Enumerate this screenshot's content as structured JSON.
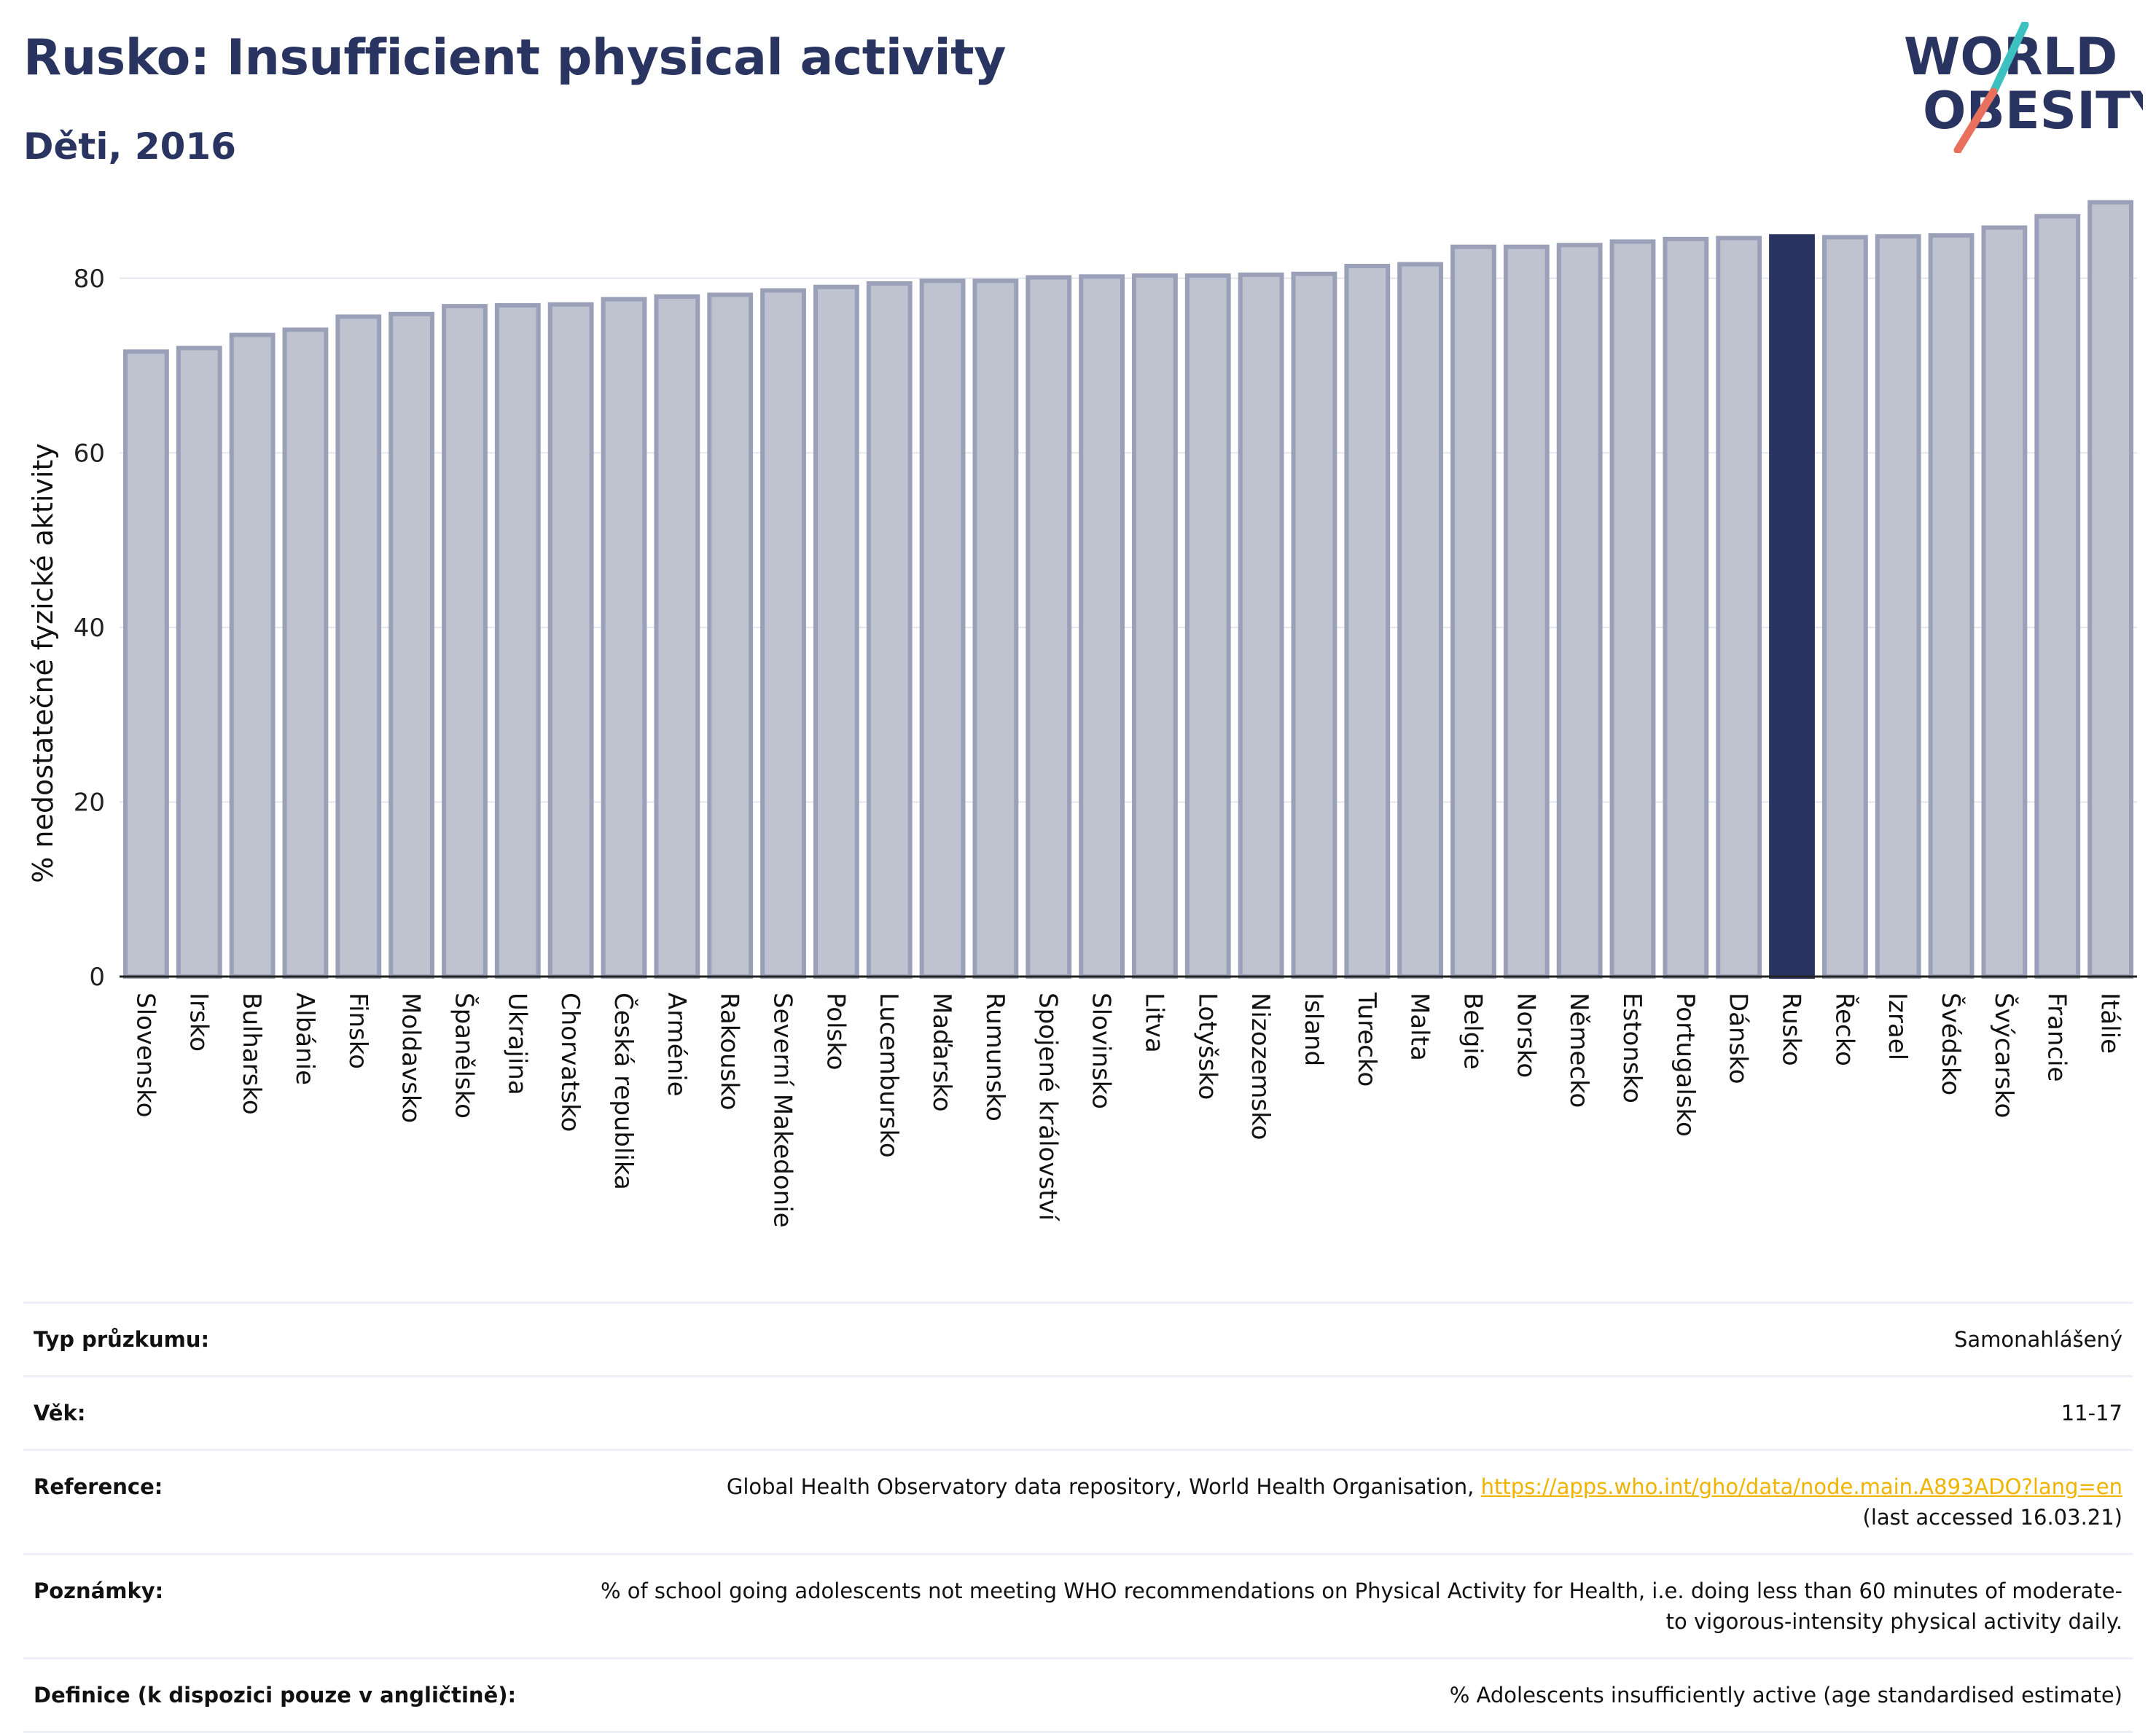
{
  "header": {
    "title": "Rusko: Insufficient physical activity",
    "subtitle": "Děti, 2016"
  },
  "logo": {
    "line1": "WORLD",
    "line2": "OBESITY",
    "text_color": "#2a3460",
    "accent_teal": "#3cc0c0",
    "accent_red": "#e8705c"
  },
  "colors": {
    "bar_fill": "#bfc3d0",
    "bar_stroke": "#9aa0b8",
    "highlight": "#2a3460",
    "title": "#2a3460",
    "grid": "#e4e6ee",
    "link": "#f0b400"
  },
  "chart_data": {
    "type": "bar",
    "ylabel": "% nedostatečné fyzické aktivity",
    "xlabel": "",
    "ylim": [
      0,
      90
    ],
    "yticks": [
      0,
      20,
      40,
      60,
      80
    ],
    "grid": true,
    "highlight": "Rusko",
    "categories": [
      "Slovensko",
      "Irsko",
      "Bulharsko",
      "Albánie",
      "Finsko",
      "Moldavsko",
      "Španělsko",
      "Ukrajina",
      "Chorvatsko",
      "Česká republika",
      "Arménie",
      "Rakousko",
      "Severní Makedonie",
      "Polsko",
      "Lucembursko",
      "Maďarsko",
      "Rumunsko",
      "Spojené království",
      "Slovinsko",
      "Litva",
      "Lotyšsko",
      "Nizozemsko",
      "Island",
      "Turecko",
      "Malta",
      "Belgie",
      "Norsko",
      "Německo",
      "Estonsko",
      "Portugalsko",
      "Dánsko",
      "Rusko",
      "Řecko",
      "Izrael",
      "Švédsko",
      "Švýcarsko",
      "Francie",
      "Itálie"
    ],
    "values": [
      71.6,
      72.0,
      73.5,
      74.1,
      75.6,
      75.9,
      76.8,
      76.9,
      77.0,
      77.6,
      77.9,
      78.1,
      78.6,
      79.0,
      79.4,
      79.7,
      79.7,
      80.1,
      80.2,
      80.3,
      80.3,
      80.4,
      80.5,
      81.4,
      81.6,
      83.6,
      83.6,
      83.8,
      84.2,
      84.5,
      84.6,
      84.8,
      84.7,
      84.8,
      84.9,
      85.8,
      87.1,
      88.7
    ]
  },
  "info": {
    "survey_type_label": "Typ průzkumu:",
    "survey_type_value": "Samonahlášený",
    "age_label": "Věk:",
    "age_value": "11-17",
    "reference_label": "Reference:",
    "reference_text": "Global Health Observatory data repository, World Health Organisation, ",
    "reference_link": "https://apps.who.int/gho/data/node.main.A893ADO?lang=en",
    "reference_accessed": "(last accessed 16.03.21)",
    "notes_label": "Poznámky:",
    "notes_value": "% of school going adolescents not meeting WHO recommendations on Physical Activity for Health, i.e. doing less than 60 minutes of moderate- to vigorous-intensity physical activity daily.",
    "definition_label": "Definice (k dispozici pouze v angličtině):",
    "definition_value": "% Adolescents insufficiently active (age standardised estimate)"
  }
}
